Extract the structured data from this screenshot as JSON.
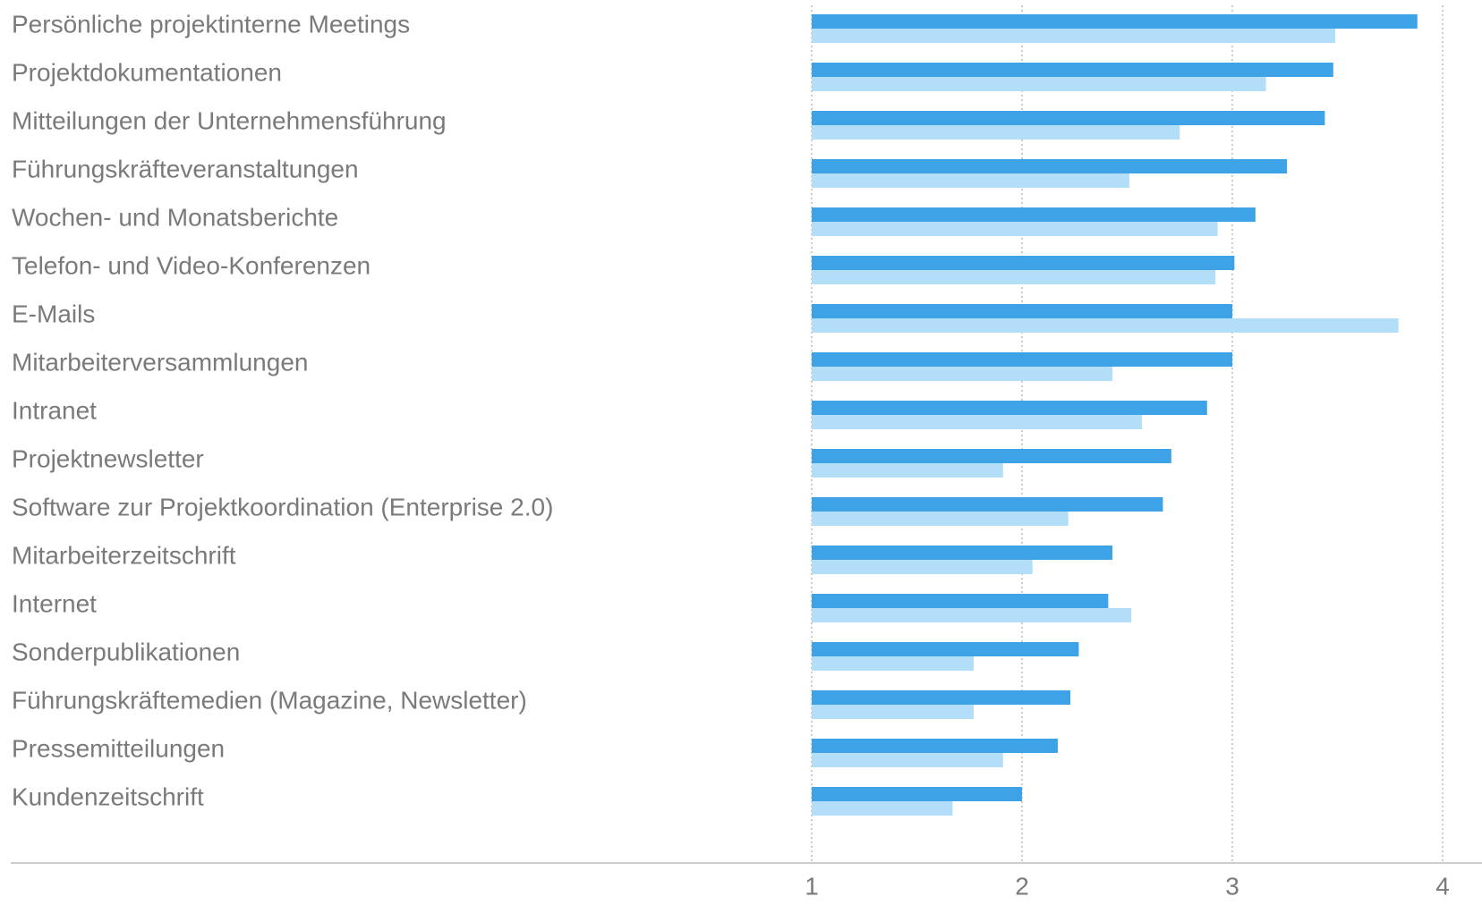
{
  "chart_data": {
    "type": "bar",
    "orientation": "horizontal",
    "categories": [
      "Persönliche projektinterne Meetings",
      "Projektdokumentationen",
      "Mitteilungen der Unternehmensführung",
      "Führungskräfteveranstaltungen",
      "Wochen- und Monatsberichte",
      "Telefon- und Video-Konferenzen",
      "E-Mails",
      "Mitarbeiterversammlungen",
      "Intranet",
      "Projektnewsletter",
      "Software zur Projektkoordination (Enterprise 2.0)",
      "Mitarbeiterzeitschrift",
      "Internet",
      "Sonderpublikationen",
      "Führungskräftemedien (Magazine, Newsletter)",
      "Pressemitteilungen",
      "Kundenzeitschrift"
    ],
    "series": [
      {
        "color": "#3ea3e6",
        "values": [
          3.88,
          3.48,
          3.44,
          3.26,
          3.11,
          3.01,
          3.0,
          3.0,
          2.88,
          2.71,
          2.67,
          2.43,
          2.41,
          2.27,
          2.23,
          2.17,
          2.0
        ]
      },
      {
        "color": "#b3def7",
        "values": [
          3.49,
          3.16,
          2.75,
          2.51,
          2.93,
          2.92,
          3.79,
          2.43,
          2.57,
          1.91,
          2.22,
          2.05,
          2.52,
          1.77,
          1.77,
          1.91,
          1.67
        ]
      }
    ],
    "xlim": [
      1,
      4
    ],
    "xticks": [
      1,
      2,
      3,
      4
    ],
    "grid": true
  }
}
